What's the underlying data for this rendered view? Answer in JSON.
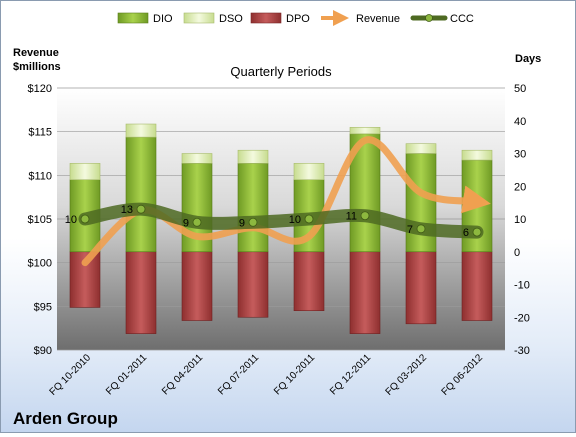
{
  "chart_data": {
    "type": "bar",
    "title": "Quarterly Periods",
    "company": "Arden Group",
    "left_axis_label": [
      "Revenue",
      "$millions"
    ],
    "right_axis_label": "Days",
    "left_axis": {
      "min": 90,
      "max": 120,
      "step": 5,
      "ticks": [
        "$90",
        "$95",
        "$100",
        "$105",
        "$110",
        "$115",
        "$120"
      ]
    },
    "right_axis": {
      "min": -30,
      "max": 50,
      "step": 10,
      "ticks": [
        "-30",
        "-20",
        "-10",
        "0",
        "10",
        "20",
        "30",
        "40",
        "50"
      ]
    },
    "categories": [
      "FQ 10-2010",
      "FQ 01-2011",
      "FQ 04-2011",
      "FQ 07-2011",
      "FQ 10-2011",
      "FQ 12-2011",
      "FQ 03-2012",
      "FQ 06-2012"
    ],
    "legend": {
      "placement": "top",
      "items": [
        "DIO",
        "DSO",
        "DPO",
        "Revenue",
        "CCC"
      ]
    },
    "series": [
      {
        "name": "DIO",
        "axis": "right",
        "color": "#8fbc3a",
        "values": [
          22,
          35,
          27,
          27,
          22,
          36,
          30,
          28
        ]
      },
      {
        "name": "DSO",
        "axis": "right",
        "color": "#e8f3c4",
        "values": [
          5,
          4,
          3,
          4,
          5,
          2,
          3,
          3
        ]
      },
      {
        "name": "DPO",
        "axis": "right",
        "color": "#b54a4a",
        "values": [
          -17,
          -25,
          -21,
          -20,
          -18,
          -25,
          -22,
          -21
        ]
      },
      {
        "name": "Revenue",
        "axis": "left",
        "color": "#f4a460",
        "values": [
          100,
          106,
          103,
          104,
          103,
          114,
          108,
          107
        ]
      },
      {
        "name": "CCC",
        "axis": "right",
        "color": "#556b2f",
        "values": [
          10,
          13,
          9,
          9,
          10,
          11,
          7,
          6
        ]
      }
    ],
    "ccc_labels": [
      "10",
      "13",
      "9",
      "9",
      "10",
      "11",
      "7",
      "6"
    ]
  }
}
